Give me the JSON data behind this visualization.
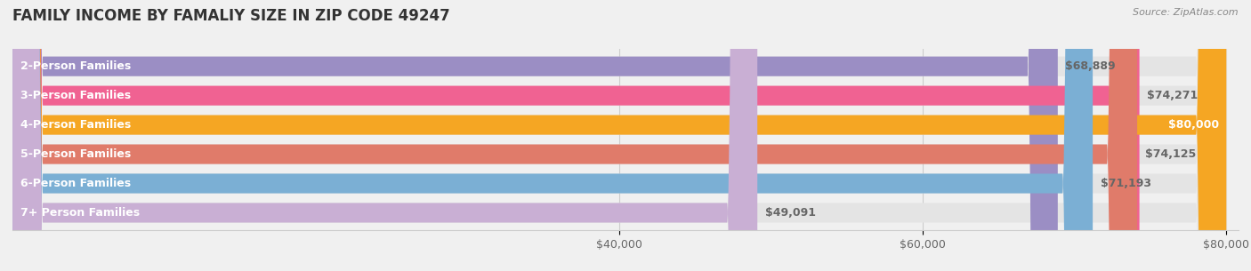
{
  "title": "FAMILY INCOME BY FAMALIY SIZE IN ZIP CODE 49247",
  "source": "Source: ZipAtlas.com",
  "categories": [
    "2-Person Families",
    "3-Person Families",
    "4-Person Families",
    "5-Person Families",
    "6-Person Families",
    "7+ Person Families"
  ],
  "values": [
    68889,
    74271,
    80000,
    74125,
    71193,
    49091
  ],
  "value_labels": [
    "$68,889",
    "$74,271",
    "$80,000",
    "$74,125",
    "$71,193",
    "$49,091"
  ],
  "bar_colors": [
    "#9b8ec4",
    "#f06292",
    "#f5a623",
    "#e07b6a",
    "#7bafd4",
    "#c9afd4"
  ],
  "bar_colors_light": [
    "#c5bce0",
    "#f8b8d0",
    "#fad59a",
    "#edb3a8",
    "#aecde8",
    "#e0d0e8"
  ],
  "xmin": 0,
  "xmax": 80000,
  "xticks": [
    40000,
    60000,
    80000
  ],
  "xtick_labels": [
    "$40,000",
    "$60,000",
    "$80,000"
  ],
  "background_color": "#f0f0f0",
  "bar_bg_color": "#e8e8e8",
  "label_fontsize": 9,
  "value_fontsize": 9,
  "title_fontsize": 12
}
